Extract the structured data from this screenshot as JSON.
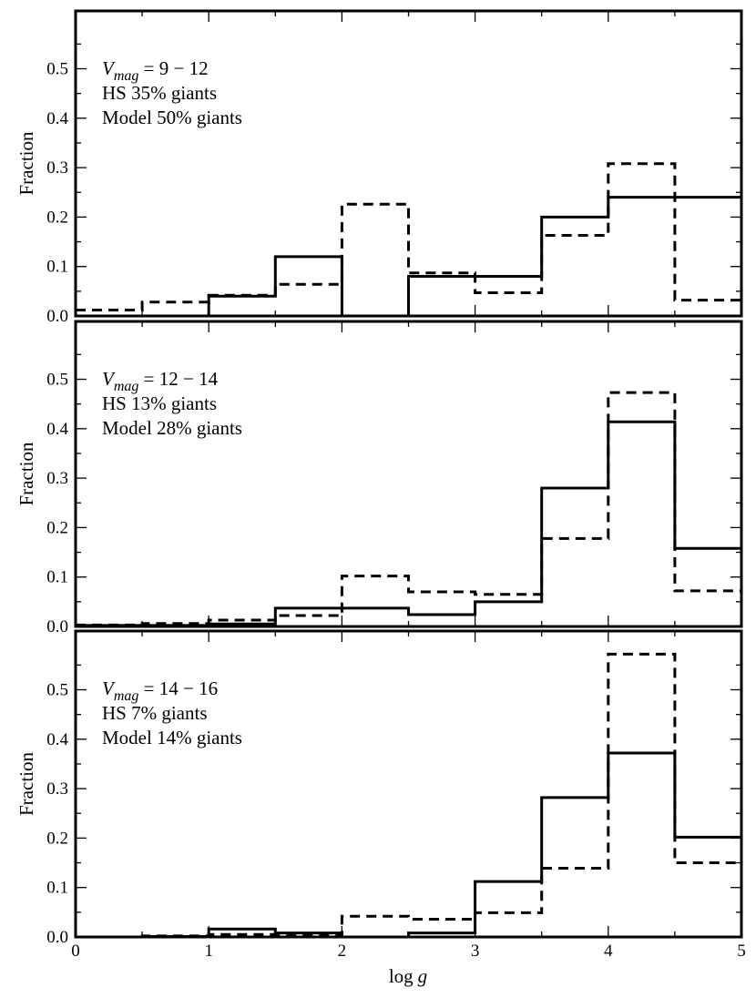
{
  "chart_data": [
    {
      "type": "histogram",
      "panel": "top",
      "xlabel": "log g",
      "ylabel": "Fraction",
      "xlim": [
        0,
        5
      ],
      "ylim": [
        0,
        0.6
      ],
      "bin_edges": [
        0,
        0.5,
        1,
        1.5,
        2,
        2.5,
        3,
        3.5,
        4,
        4.5,
        5
      ],
      "series": [
        {
          "name": "Model",
          "style": "solid",
          "values": [
            0.0,
            0.0,
            0.04,
            0.12,
            0.0,
            0.08,
            0.08,
            0.2,
            0.24,
            0.24
          ]
        },
        {
          "name": "HS",
          "style": "dashed",
          "values": [
            0.012,
            0.028,
            0.042,
            0.064,
            0.226,
            0.087,
            0.047,
            0.163,
            0.308,
            0.032
          ]
        }
      ],
      "annotation": {
        "mag_var": "V",
        "mag_sub": "mag",
        "mag_range": " = 9 − 12",
        "hs_text": "HS 35% giants",
        "model_text": "Model 50% giants"
      }
    },
    {
      "type": "histogram",
      "panel": "middle",
      "xlabel": "log g",
      "ylabel": "Fraction",
      "xlim": [
        0,
        5
      ],
      "ylim": [
        0,
        0.6
      ],
      "bin_edges": [
        0,
        0.5,
        1,
        1.5,
        2,
        2.5,
        3,
        3.5,
        4,
        4.5,
        5
      ],
      "series": [
        {
          "name": "Model",
          "style": "solid",
          "values": [
            0.002,
            0.002,
            0.005,
            0.037,
            0.037,
            0.024,
            0.05,
            0.28,
            0.414,
            0.158
          ]
        },
        {
          "name": "HS",
          "style": "dashed",
          "values": [
            0.003,
            0.006,
            0.013,
            0.022,
            0.102,
            0.07,
            0.065,
            0.178,
            0.473,
            0.072
          ]
        }
      ],
      "annotation": {
        "mag_var": "V",
        "mag_sub": "mag",
        "mag_range": " = 12 − 14",
        "hs_text": "HS 13% giants",
        "model_text": "Model 28% giants"
      }
    },
    {
      "type": "histogram",
      "panel": "bottom",
      "xlabel": "log g",
      "ylabel": "Fraction",
      "xlim": [
        0,
        5
      ],
      "ylim": [
        0,
        0.6
      ],
      "bin_edges": [
        0,
        0.5,
        1,
        1.5,
        2,
        2.5,
        3,
        3.5,
        4,
        4.5,
        5
      ],
      "series": [
        {
          "name": "Model",
          "style": "solid",
          "values": [
            0.0,
            0.001,
            0.016,
            0.008,
            0.0,
            0.008,
            0.112,
            0.282,
            0.372,
            0.202
          ]
        },
        {
          "name": "HS",
          "style": "dashed",
          "values": [
            0.0,
            0.002,
            0.005,
            0.005,
            0.042,
            0.036,
            0.049,
            0.139,
            0.572,
            0.15
          ]
        }
      ],
      "annotation": {
        "mag_var": "V",
        "mag_sub": "mag",
        "mag_range": " = 14 − 16",
        "hs_text": "HS 7% giants",
        "model_text": "Model 14% giants"
      }
    }
  ],
  "axes": {
    "y_tick_labels": [
      "0.0",
      "0.1",
      "0.2",
      "0.3",
      "0.4",
      "0.5"
    ],
    "x_tick_labels": [
      "0",
      "1",
      "2",
      "3",
      "4",
      "5"
    ],
    "ylabel": "Fraction",
    "xlabel_main": "log",
    "xlabel_var": "g"
  }
}
